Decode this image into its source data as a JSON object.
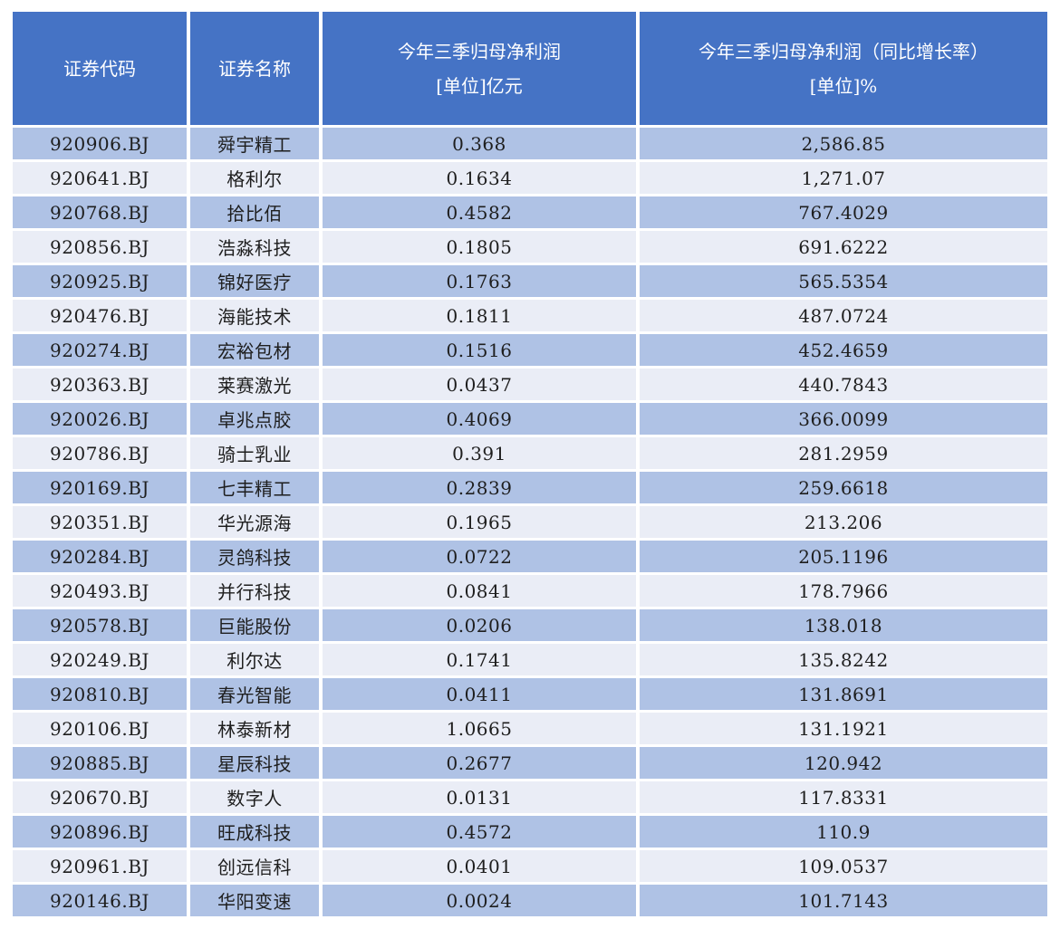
{
  "table": {
    "columns": [
      {
        "line1": "证券代码"
      },
      {
        "line1": "证券名称"
      },
      {
        "line1": "今年三季归母净利润",
        "line2": "[单位]亿元"
      },
      {
        "line1": "今年三季归母净利润（同比增长率）",
        "line2": "[单位]%"
      }
    ],
    "rows": [
      {
        "code": "920906.BJ",
        "name": "舜宇精工",
        "profit": "0.368",
        "growth": "2,586.85"
      },
      {
        "code": "920641.BJ",
        "name": "格利尔",
        "profit": "0.1634",
        "growth": "1,271.07"
      },
      {
        "code": "920768.BJ",
        "name": "拾比佰",
        "profit": "0.4582",
        "growth": "767.4029"
      },
      {
        "code": "920856.BJ",
        "name": "浩淼科技",
        "profit": "0.1805",
        "growth": "691.6222"
      },
      {
        "code": "920925.BJ",
        "name": "锦好医疗",
        "profit": "0.1763",
        "growth": "565.5354"
      },
      {
        "code": "920476.BJ",
        "name": "海能技术",
        "profit": "0.1811",
        "growth": "487.0724"
      },
      {
        "code": "920274.BJ",
        "name": "宏裕包材",
        "profit": "0.1516",
        "growth": "452.4659"
      },
      {
        "code": "920363.BJ",
        "name": "莱赛激光",
        "profit": "0.0437",
        "growth": "440.7843"
      },
      {
        "code": "920026.BJ",
        "name": "卓兆点胶",
        "profit": "0.4069",
        "growth": "366.0099"
      },
      {
        "code": "920786.BJ",
        "name": "骑士乳业",
        "profit": "0.391",
        "growth": "281.2959"
      },
      {
        "code": "920169.BJ",
        "name": "七丰精工",
        "profit": "0.2839",
        "growth": "259.6618"
      },
      {
        "code": "920351.BJ",
        "name": "华光源海",
        "profit": "0.1965",
        "growth": "213.206"
      },
      {
        "code": "920284.BJ",
        "name": "灵鸽科技",
        "profit": "0.0722",
        "growth": "205.1196"
      },
      {
        "code": "920493.BJ",
        "name": "并行科技",
        "profit": "0.0841",
        "growth": "178.7966"
      },
      {
        "code": "920578.BJ",
        "name": "巨能股份",
        "profit": "0.0206",
        "growth": "138.018"
      },
      {
        "code": "920249.BJ",
        "name": "利尔达",
        "profit": "0.1741",
        "growth": "135.8242"
      },
      {
        "code": "920810.BJ",
        "name": "春光智能",
        "profit": "0.0411",
        "growth": "131.8691"
      },
      {
        "code": "920106.BJ",
        "name": "林泰新材",
        "profit": "1.0665",
        "growth": "131.1921"
      },
      {
        "code": "920885.BJ",
        "name": "星辰科技",
        "profit": "0.2677",
        "growth": "120.942"
      },
      {
        "code": "920670.BJ",
        "name": "数字人",
        "profit": "0.0131",
        "growth": "117.8331"
      },
      {
        "code": "920896.BJ",
        "name": "旺成科技",
        "profit": "0.4572",
        "growth": "110.9"
      },
      {
        "code": "920961.BJ",
        "name": "创远信科",
        "profit": "0.0401",
        "growth": "109.0537"
      },
      {
        "code": "920146.BJ",
        "name": "华阳变速",
        "profit": "0.0024",
        "growth": "101.7143"
      }
    ]
  },
  "colors": {
    "header_bg": "#4573C5",
    "header_text": "#FFFFFF",
    "row_odd": "#AFC2E5",
    "row_even": "#EAEDF6",
    "body_text": "#1E1E1E"
  },
  "chart_data": {
    "type": "table",
    "columns": [
      "证券代码",
      "证券名称",
      "今年三季归母净利润 [单位]亿元",
      "今年三季归母净利润（同比增长率）[单位]%"
    ],
    "rows": [
      [
        "920906.BJ",
        "舜宇精工",
        0.368,
        2586.85
      ],
      [
        "920641.BJ",
        "格利尔",
        0.1634,
        1271.07
      ],
      [
        "920768.BJ",
        "拾比佰",
        0.4582,
        767.4029
      ],
      [
        "920856.BJ",
        "浩淼科技",
        0.1805,
        691.6222
      ],
      [
        "920925.BJ",
        "锦好医疗",
        0.1763,
        565.5354
      ],
      [
        "920476.BJ",
        "海能技术",
        0.1811,
        487.0724
      ],
      [
        "920274.BJ",
        "宏裕包材",
        0.1516,
        452.4659
      ],
      [
        "920363.BJ",
        "莱赛激光",
        0.0437,
        440.7843
      ],
      [
        "920026.BJ",
        "卓兆点胶",
        0.4069,
        366.0099
      ],
      [
        "920786.BJ",
        "骑士乳业",
        0.391,
        281.2959
      ],
      [
        "920169.BJ",
        "七丰精工",
        0.2839,
        259.6618
      ],
      [
        "920351.BJ",
        "华光源海",
        0.1965,
        213.206
      ],
      [
        "920284.BJ",
        "灵鸽科技",
        0.0722,
        205.1196
      ],
      [
        "920493.BJ",
        "并行科技",
        0.0841,
        178.7966
      ],
      [
        "920578.BJ",
        "巨能股份",
        0.0206,
        138.018
      ],
      [
        "920249.BJ",
        "利尔达",
        0.1741,
        135.8242
      ],
      [
        "920810.BJ",
        "春光智能",
        0.0411,
        131.8691
      ],
      [
        "920106.BJ",
        "林泰新材",
        1.0665,
        131.1921
      ],
      [
        "920885.BJ",
        "星辰科技",
        0.2677,
        120.942
      ],
      [
        "920670.BJ",
        "数字人",
        0.0131,
        117.8331
      ],
      [
        "920896.BJ",
        "旺成科技",
        0.4572,
        110.9
      ],
      [
        "920961.BJ",
        "创远信科",
        0.0401,
        109.0537
      ],
      [
        "920146.BJ",
        "华阳变速",
        0.0024,
        101.7143
      ]
    ]
  }
}
